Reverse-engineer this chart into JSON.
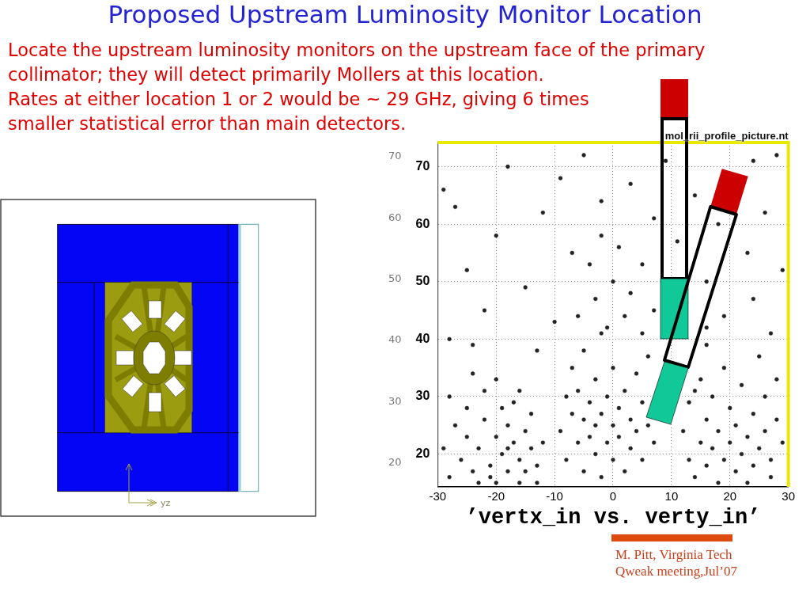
{
  "chart_data": {
    "type": "scatter",
    "title": "Proposed Upstream Luminosity Monitor Location",
    "subtitle": "Locate the upstream luminosity monitors on the upstream face of the primary collimator; they will detect primarily Mollers at this location.\nRates at either location 1 or 2 would be ~ 29 GHz, giving 6 times smaller statistical error than main detectors.",
    "xlabel": "’vertx_in vs. verty_in’",
    "annotations": [
      "mol_rii_profile_picture.nt",
      "yz",
      "M. Pitt, Virginia Tech",
      "Qweak meeting,Jul’07"
    ],
    "x": [
      -28,
      -26,
      -25,
      -24,
      -23,
      -22,
      -21,
      -20,
      -20,
      -19,
      -18,
      -18,
      -17,
      -17,
      -16,
      -16,
      -15,
      -15,
      -14,
      -14,
      -13,
      -13,
      -12,
      -19,
      -22,
      -25,
      -27,
      -29,
      -28,
      -24,
      -20,
      -16,
      -21,
      -23,
      -18,
      -9,
      -8,
      -8,
      -7,
      -7,
      -6,
      -6,
      -5,
      -5,
      -5,
      -4,
      -4,
      -3,
      -3,
      -3,
      -2,
      -2,
      -2,
      -1,
      -1,
      0,
      0,
      0,
      1,
      1,
      2,
      2,
      2,
      3,
      3,
      4,
      4,
      5,
      5,
      6,
      6,
      7,
      -6,
      -3,
      0,
      -1,
      3,
      -4,
      1,
      -2,
      12,
      13,
      13,
      14,
      15,
      15,
      16,
      16,
      17,
      17,
      18,
      18,
      19,
      19,
      20,
      20,
      21,
      21,
      22,
      22,
      23,
      23,
      24,
      24,
      25,
      25,
      26,
      26,
      27,
      27,
      28,
      28,
      29,
      14,
      16,
      -28,
      -25,
      -22,
      -27,
      -20,
      -18,
      -15,
      -12,
      -10,
      -9,
      -7,
      -5,
      -2,
      3,
      5,
      7,
      7,
      9,
      11,
      16,
      14,
      16,
      18,
      19,
      24,
      23,
      24,
      26,
      27,
      29,
      -13,
      -24,
      5,
      -29,
      28
    ],
    "values": [
      16,
      19,
      23,
      17,
      21,
      26,
      18,
      15,
      23,
      20,
      17,
      25,
      22,
      29,
      19,
      15,
      24,
      17,
      21,
      27,
      18,
      15,
      22,
      28,
      31,
      28,
      25,
      21,
      30,
      34,
      33,
      31,
      16,
      15,
      21,
      24,
      30,
      19,
      27,
      35,
      22,
      31,
      17,
      26,
      38,
      23,
      29,
      20,
      25,
      33,
      27,
      16,
      41,
      22,
      30,
      25,
      35,
      19,
      28,
      23,
      31,
      17,
      44,
      26,
      21,
      34,
      24,
      29,
      19,
      25,
      37,
      22,
      44,
      47,
      50,
      42,
      48,
      53,
      56,
      58,
      24,
      19,
      29,
      16,
      22,
      33,
      18,
      26,
      21,
      30,
      15,
      24,
      19,
      35,
      22,
      28,
      17,
      25,
      20,
      32,
      23,
      15,
      27,
      18,
      21,
      37,
      24,
      30,
      16,
      19,
      26,
      33,
      22,
      31,
      39,
      40,
      52,
      45,
      63,
      58,
      70,
      49,
      62,
      43,
      68,
      55,
      72,
      64,
      67,
      53,
      61,
      45,
      71,
      57,
      42,
      65,
      50,
      60,
      44,
      71,
      55,
      47,
      62,
      41,
      52,
      38,
      39,
      41,
      66,
      72
    ],
    "color": "#222222",
    "marker": "circle",
    "xlim": [
      -30,
      30
    ],
    "xticks": [
      -30,
      -20,
      -10,
      0,
      10,
      20,
      30
    ],
    "ylim": [
      14.3,
      74.2
    ],
    "yticks": [
      20,
      30,
      40,
      50,
      60,
      70
    ],
    "y2lim": [
      16.1,
      72.3
    ],
    "y2ticks": [
      20,
      30,
      40,
      50,
      60,
      70
    ],
    "grid": true
  }
}
